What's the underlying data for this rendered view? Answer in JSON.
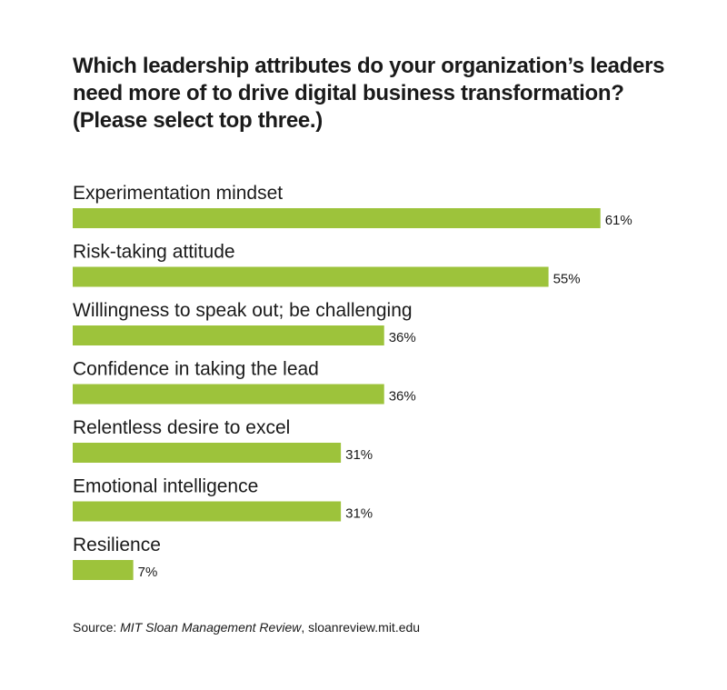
{
  "chart_data": {
    "type": "bar",
    "orientation": "horizontal",
    "title_lines": [
      "Which leadership attributes do your organization’s leaders",
      "need more of to drive digital business transformation?",
      "(Please select top three.)"
    ],
    "categories": [
      "Experimentation mindset",
      "Risk-taking attitude",
      "Willingness to speak out; be challenging",
      "Confidence in taking the lead",
      "Relentless desire to excel",
      "Emotional intelligence",
      "Resilience"
    ],
    "values": [
      61,
      55,
      36,
      36,
      31,
      31,
      7
    ],
    "value_labels": [
      "61%",
      "55%",
      "36%",
      "36%",
      "31%",
      "31%",
      "7%"
    ],
    "bar_color": "#9dc33b",
    "grid": false,
    "legend": "none"
  },
  "source": {
    "prefix": "Source: ",
    "publication": "MIT Sloan Management Review",
    "suffix": ", sloanreview.mit.edu"
  }
}
